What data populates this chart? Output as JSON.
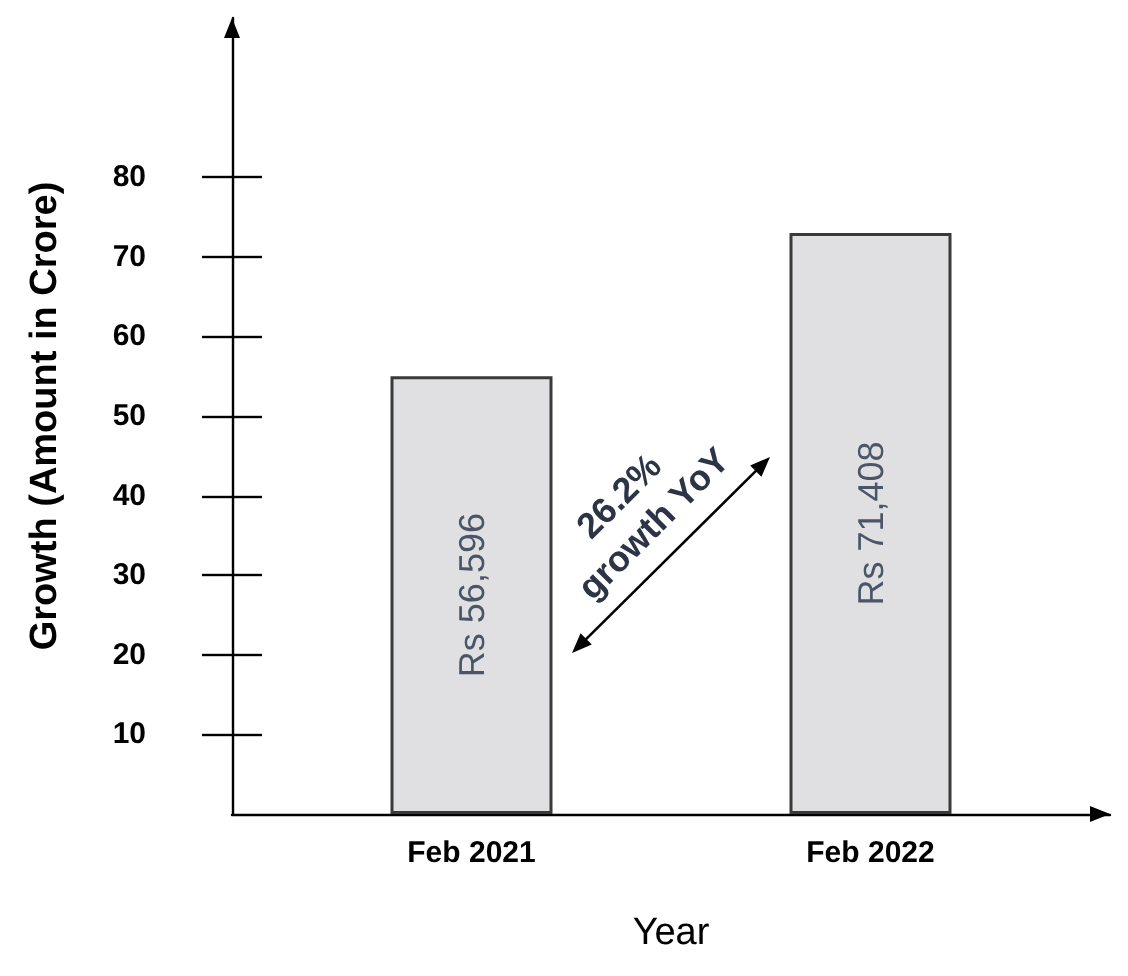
{
  "chart_data": {
    "type": "bar",
    "categories": [
      "Feb 2021",
      "Feb 2022"
    ],
    "values": [
      55,
      73
    ],
    "value_labels": [
      "Rs 56,596",
      "Rs 71,408"
    ],
    "color": "#e0e0e2",
    "xlabel": "Year",
    "ylabel": "Growth (Amount in Crore)",
    "ylim": [
      0,
      100
    ],
    "yticks": [
      10,
      20,
      30,
      40,
      50,
      60,
      70,
      80
    ],
    "annotations": [
      "26.2% growth YoY"
    ]
  }
}
